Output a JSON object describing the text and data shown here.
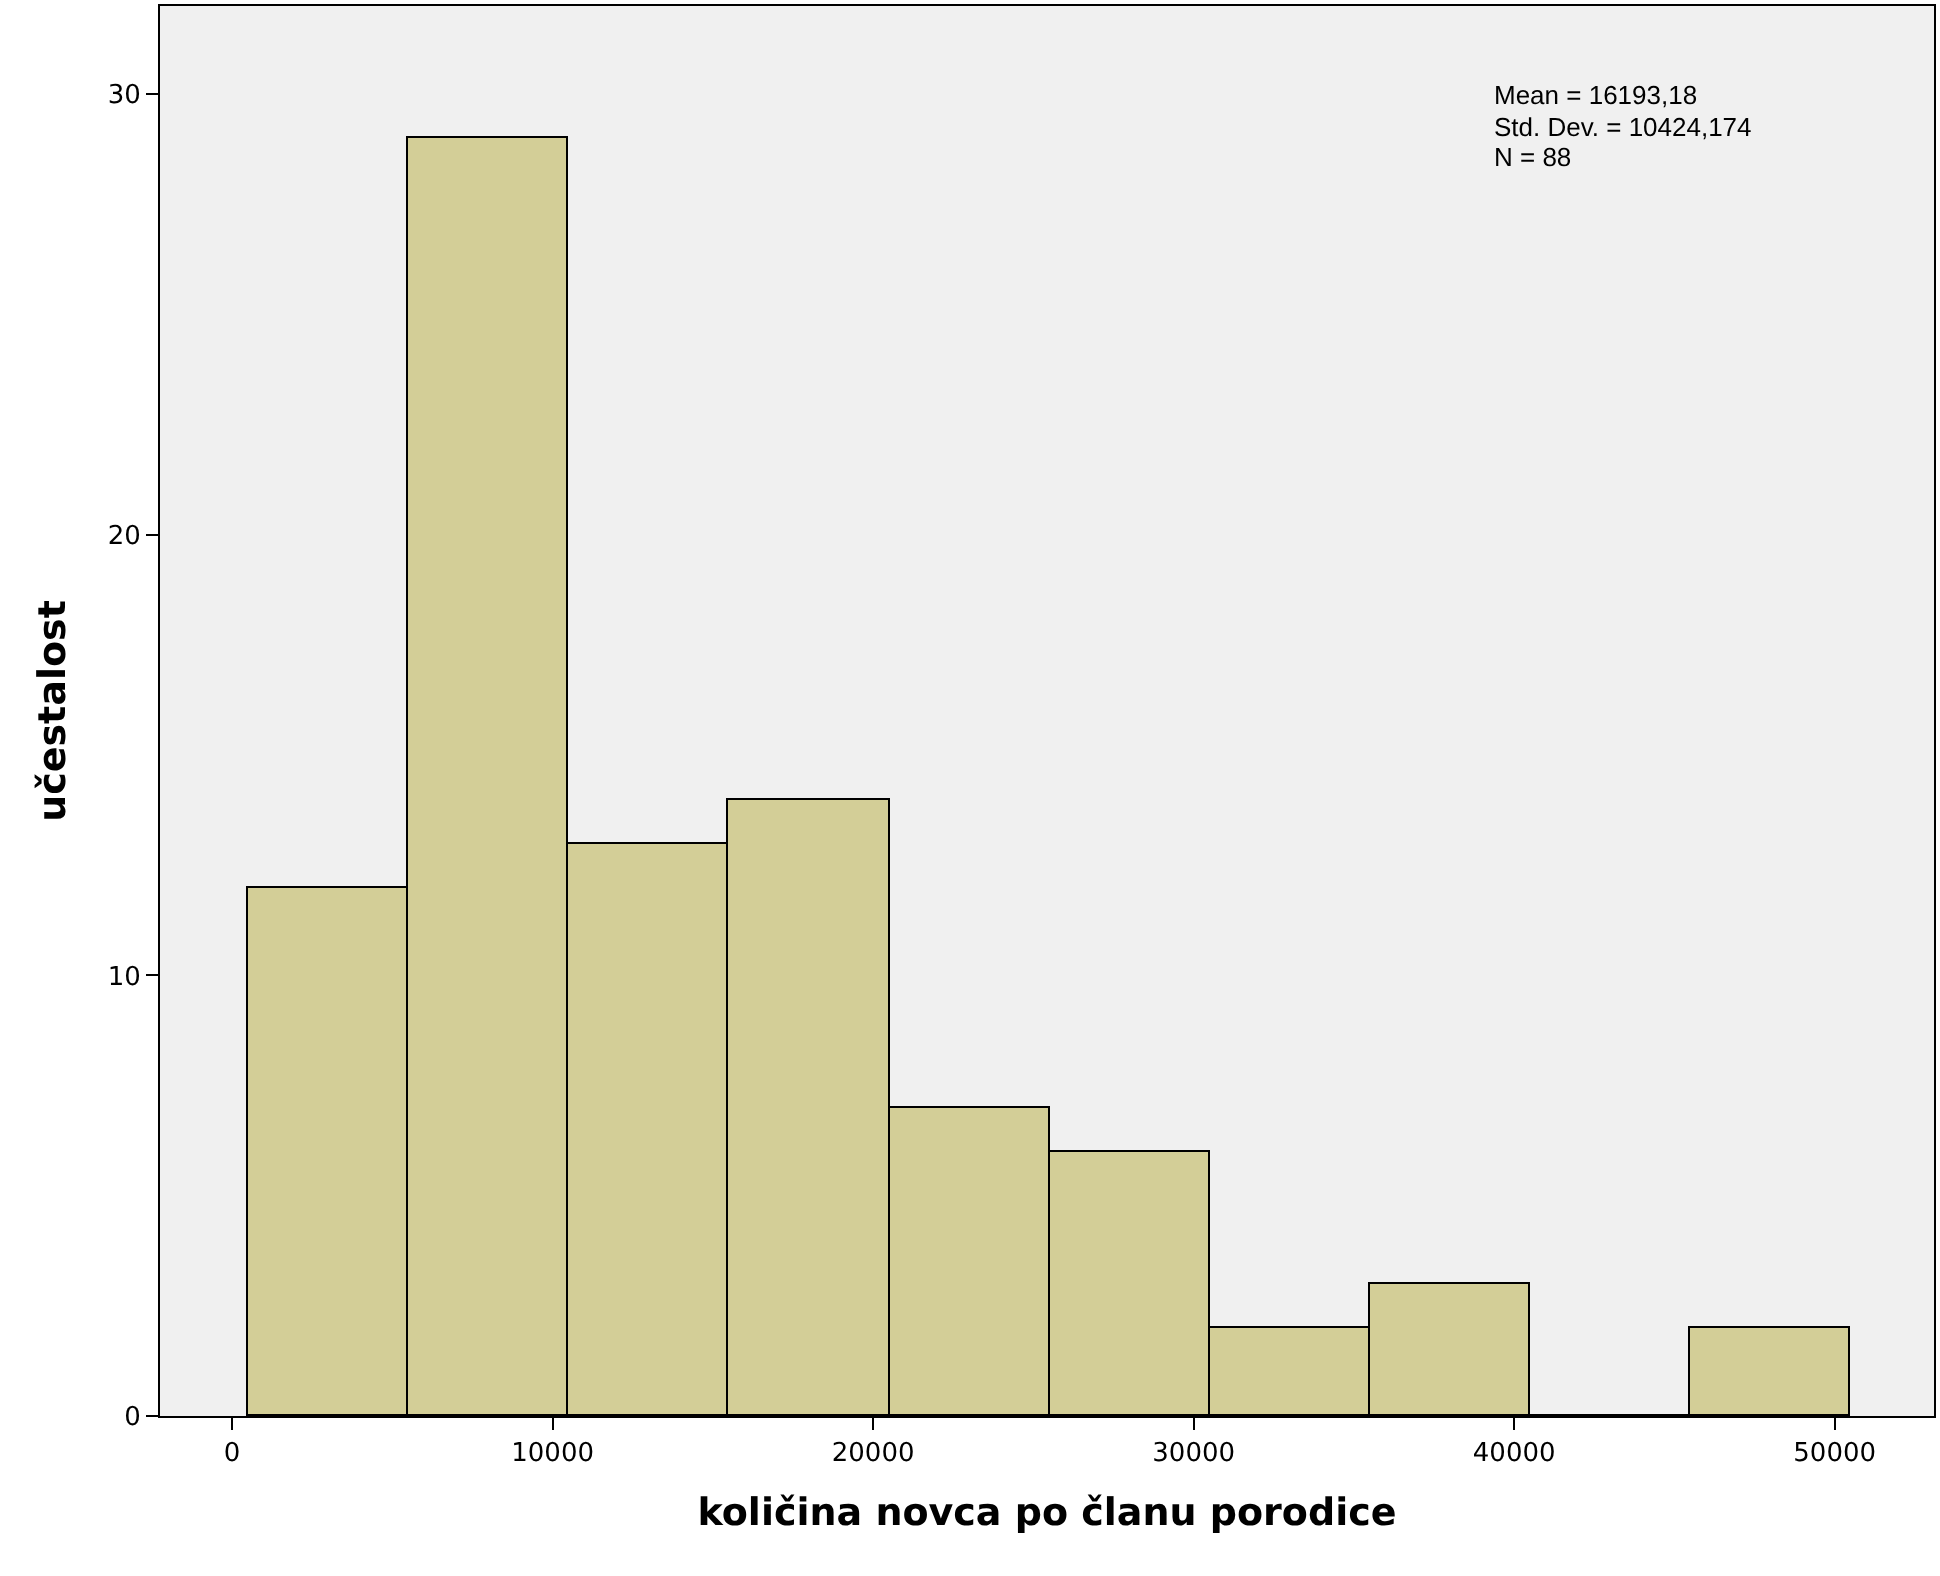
{
  "chart_data": {
    "type": "histogram",
    "xlabel": "količina novca po članu porodice",
    "ylabel": "učestalost",
    "bins": [
      500,
      5500,
      10500,
      15500,
      20500,
      25500,
      30500,
      35500,
      40500,
      45500,
      50500
    ],
    "values": [
      12,
      29,
      13,
      14,
      7,
      6,
      2,
      3,
      0,
      2
    ],
    "color": "#d3ce97",
    "xlim": [
      -2250,
      53100
    ],
    "xticks": [
      0,
      10000,
      20000,
      30000,
      40000,
      50000
    ],
    "ylim": [
      0,
      32
    ],
    "yticks": [
      0,
      10,
      20,
      30
    ],
    "grid": false,
    "annotations": [
      "Mean = 16193,18",
      "Std. Dev. = 10424,174",
      "N = 88"
    ]
  }
}
